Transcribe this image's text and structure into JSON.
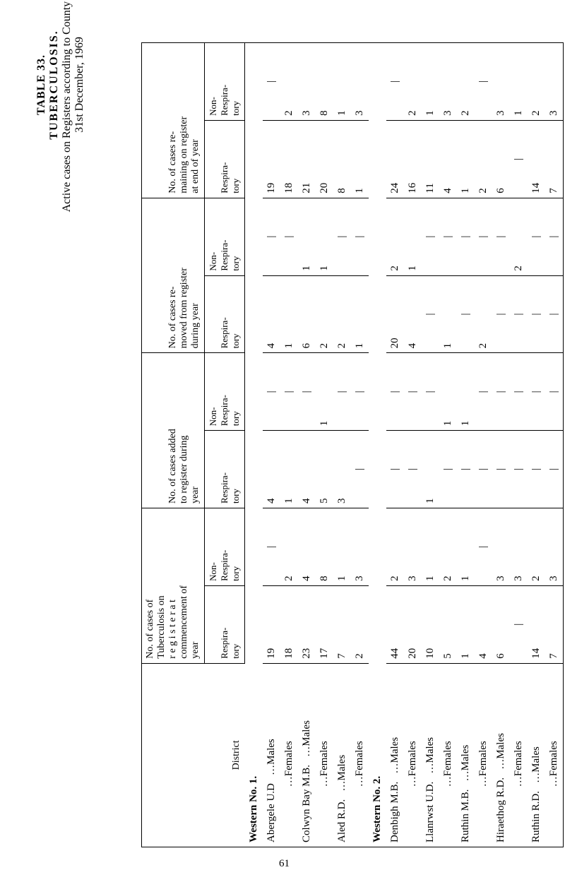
{
  "title": {
    "table_no": "TABLE 33.",
    "heading": "TUBERCULOSIS.",
    "sub": "Active cases on Registers according to County Districts,",
    "date": "31st December, 1969"
  },
  "page_number": "61",
  "col_headers": {
    "district": "District",
    "c1_top": "No. of cases of",
    "c1_l2": "Tuberculosis on",
    "c1_l3": "r e g i s t e r   a t",
    "c1_l4": "commencement of",
    "c1_l5": "year",
    "c2_top": "No. of cases added",
    "c2_l2": "to register during",
    "c2_l3": "year",
    "c3_top": "No. of cases re-",
    "c3_l2": "moved from register",
    "c3_l3": "during year",
    "c4_top": "No. of cases re-",
    "c4_l2": "maining on register",
    "c4_l3": "at end of year",
    "resp": "Respira-",
    "resp2": "tory",
    "nonresp": "Non-",
    "nonresp2": "Respira-",
    "nonresp3": "tory"
  },
  "groups": [
    {
      "header": "Western No. 1.",
      "rows": [
        {
          "name": "Abergele U.D",
          "mf": "Males",
          "c1r": "19",
          "c1n": "|",
          "c2r": "4",
          "c2n": "|",
          "c3r": "4",
          "c3n": "|",
          "c4r": "19",
          "c4n": "|"
        },
        {
          "name": "",
          "mf": "Females",
          "c1r": "18",
          "c1n": "2",
          "c2r": "1",
          "c2n": "|",
          "c3r": "1",
          "c3n": "|",
          "c4r": "18",
          "c4n": "2"
        },
        {
          "name": "Colwyn Bay M.B.",
          "mf": "Males",
          "c1r": "23",
          "c1n": "4",
          "c2r": "4",
          "c2n": "|",
          "c3r": "6",
          "c3n": "1",
          "c4r": "21",
          "c4n": "3"
        },
        {
          "name": "",
          "mf": "Females",
          "c1r": "17",
          "c1n": "8",
          "c2r": "5",
          "c2n": "1",
          "c3r": "2",
          "c3n": "1",
          "c4r": "20",
          "c4n": "8"
        },
        {
          "name": "Aled R.D.",
          "mf": "Males",
          "c1r": "7",
          "c1n": "1",
          "c2r": "3",
          "c2n": "|",
          "c3r": "2",
          "c3n": "|",
          "c4r": "8",
          "c4n": "1"
        },
        {
          "name": "",
          "mf": "Females",
          "c1r": "2",
          "c1n": "3",
          "c2r": "|",
          "c2n": "|",
          "c3r": "1",
          "c3n": "|",
          "c4r": "1",
          "c4n": "3"
        }
      ]
    },
    {
      "header": "Western No. 2.",
      "rows": [
        {
          "name": "Denbigh M.B.",
          "mf": "Males",
          "c1r": "44",
          "c1n": "2",
          "c2r": "|",
          "c2n": "|",
          "c3r": "20",
          "c3n": "2",
          "c4r": "24",
          "c4n": "|"
        },
        {
          "name": "",
          "mf": "Females",
          "c1r": "20",
          "c1n": "3",
          "c2r": "|",
          "c2n": "|",
          "c3r": "4",
          "c3n": "1",
          "c4r": "16",
          "c4n": "2"
        },
        {
          "name": "Llanrwst U.D.",
          "mf": "Males",
          "c1r": "10",
          "c1n": "1",
          "c2r": "1",
          "c2n": "|",
          "c3r": "|",
          "c3n": "|",
          "c4r": "11",
          "c4n": "1"
        },
        {
          "name": "",
          "mf": "Females",
          "c1r": "5",
          "c1n": "2",
          "c2r": "|",
          "c2n": "1",
          "c3r": "1",
          "c3n": "|",
          "c4r": "4",
          "c4n": "3"
        },
        {
          "name": "Ruthin M.B.",
          "mf": "Males",
          "c1r": "1",
          "c1n": "1",
          "c2r": "|",
          "c2n": "1",
          "c3r": "|",
          "c3n": "|",
          "c4r": "1",
          "c4n": "2"
        },
        {
          "name": "",
          "mf": "Females",
          "c1r": "4",
          "c1n": "|",
          "c2r": "|",
          "c2n": "|",
          "c3r": "2",
          "c3n": "|",
          "c4r": "2",
          "c4n": "|"
        },
        {
          "name": "Hiraethog R.D.",
          "mf": "Males",
          "c1r": "6",
          "c1n": "3",
          "c2r": "|",
          "c2n": "|",
          "c3r": "|",
          "c3n": "|",
          "c4r": "6",
          "c4n": "3"
        },
        {
          "name": "",
          "mf": "Females",
          "c1r": "|",
          "c1n": "3",
          "c2r": "|",
          "c2n": "|",
          "c3r": "|",
          "c3n": "2",
          "c4r": "|",
          "c4n": "1"
        },
        {
          "name": "Ruthin R.D.",
          "mf": "Males",
          "c1r": "14",
          "c1n": "2",
          "c2r": "|",
          "c2n": "|",
          "c3r": "|",
          "c3n": "|",
          "c4r": "14",
          "c4n": "2"
        },
        {
          "name": "",
          "mf": "Females",
          "c1r": "7",
          "c1n": "3",
          "c2r": "|",
          "c2n": "|",
          "c3r": "|",
          "c3n": "|",
          "c4r": "7",
          "c4n": "3"
        }
      ]
    }
  ]
}
